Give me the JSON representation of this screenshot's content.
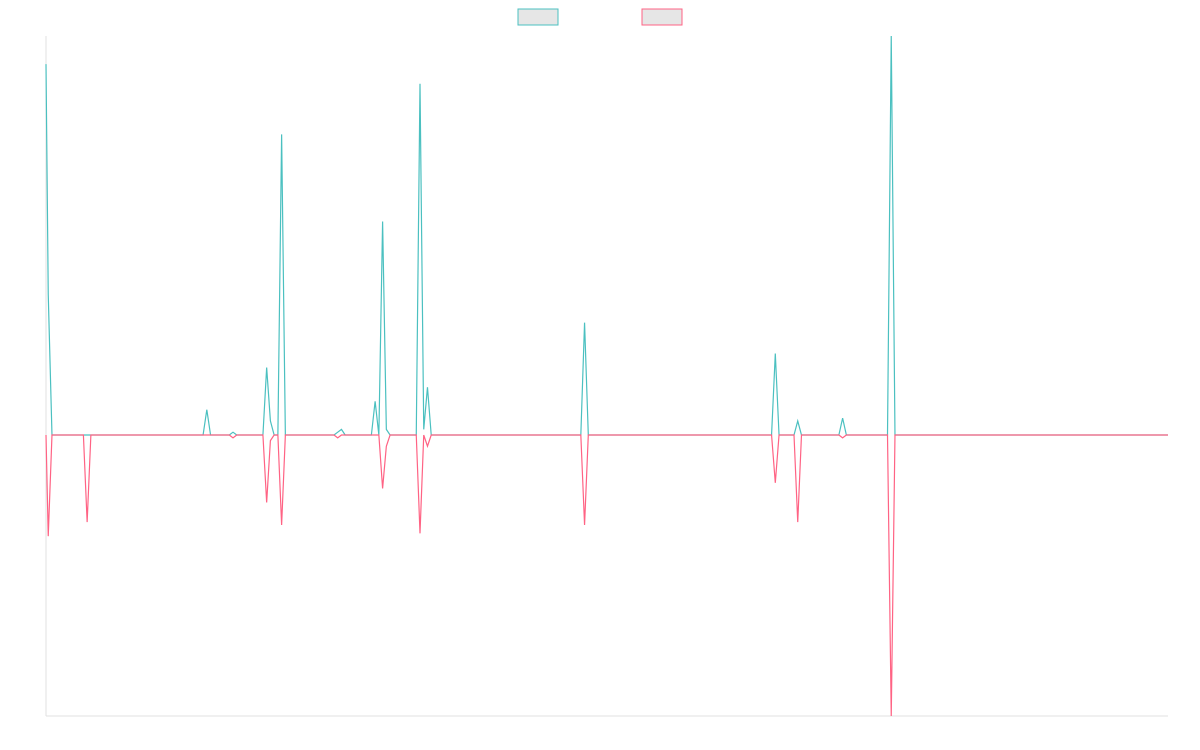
{
  "chart_data": {
    "type": "line",
    "x": [
      0,
      0.6,
      1.6,
      10,
      11,
      12,
      42,
      43,
      44,
      49,
      50,
      51,
      58,
      59,
      60,
      61,
      62,
      63,
      64,
      77,
      78,
      79,
      80,
      87,
      88,
      89,
      90,
      91,
      92,
      99,
      100,
      101,
      102,
      103,
      143,
      144,
      145,
      194,
      195,
      196,
      200,
      201,
      202,
      212,
      213,
      214,
      225,
      226,
      227,
      300
    ],
    "series": [
      {
        "color": "#4bc0c0",
        "values": [
          132,
          50,
          0,
          0,
          0,
          0,
          0,
          9,
          0,
          0,
          1,
          0,
          0,
          24,
          5,
          0,
          0,
          107,
          0,
          0,
          1,
          2,
          0,
          0,
          12,
          0,
          76,
          2,
          0,
          0,
          125,
          2,
          17,
          0,
          0,
          40,
          0,
          0,
          29,
          0,
          0,
          5,
          0,
          0,
          6,
          0,
          0,
          142,
          0,
          0
        ]
      },
      {
        "color": "#ff6384",
        "values": [
          0,
          -36,
          0,
          0,
          -31,
          0,
          0,
          0,
          0,
          0,
          -1,
          0,
          0,
          -24,
          -2,
          0,
          0,
          -32,
          0,
          0,
          -1,
          0,
          0,
          0,
          0,
          0,
          -19,
          -4,
          0,
          0,
          -35,
          0,
          -4,
          0,
          0,
          -32,
          0,
          0,
          -17,
          0,
          0,
          -31,
          0,
          0,
          -1,
          0,
          0,
          -100,
          0,
          0
        ]
      }
    ],
    "xlim": [
      0,
      300
    ],
    "ylim": [
      -100,
      142
    ],
    "legend": "top"
  }
}
